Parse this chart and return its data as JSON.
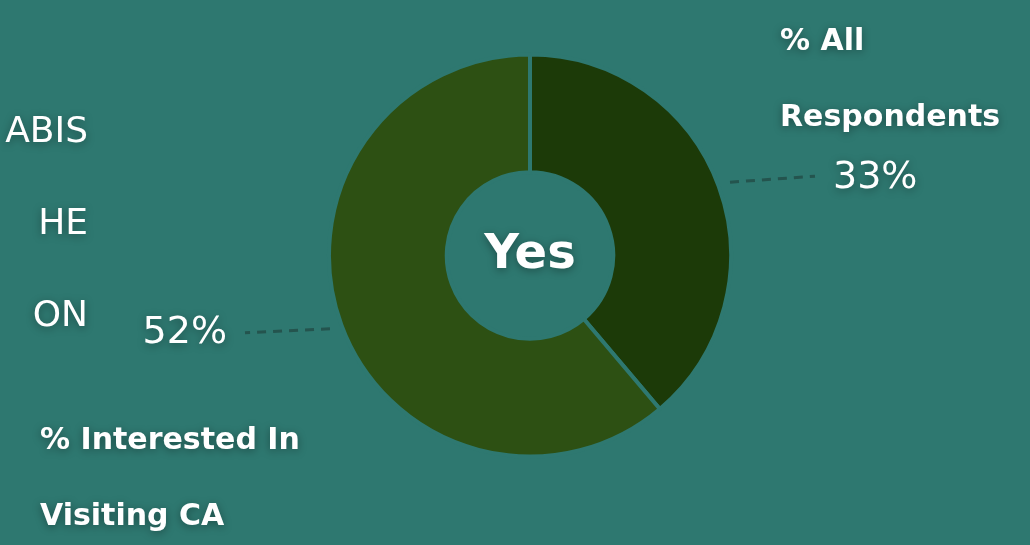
{
  "chart_data": {
    "type": "donut",
    "title": "Yes",
    "categories": [
      "% All Respondents",
      "% Interested In Visiting CA"
    ],
    "values": [
      33,
      52
    ],
    "colors": [
      "#1c3a08",
      "#2d5013"
    ],
    "value_labels": [
      "33%",
      "52%"
    ],
    "annotations": [
      "ABIS",
      "HE",
      "ON"
    ],
    "legend": false
  }
}
